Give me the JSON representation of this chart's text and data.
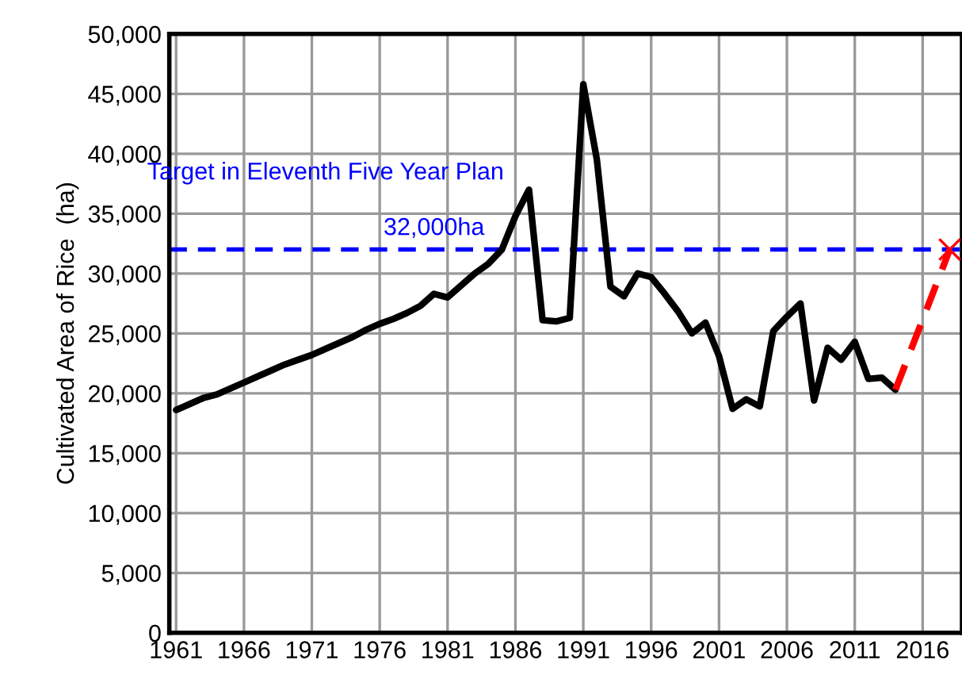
{
  "chart_data": {
    "type": "line",
    "ylabel": "Cultivated Area of Rice  (ha)",
    "xlim": [
      1960.5,
      2018.9
    ],
    "xticks": [
      1961,
      1966,
      1971,
      1976,
      1981,
      1986,
      1991,
      1996,
      2001,
      2006,
      2011,
      2016
    ],
    "ylim": [
      0,
      50000
    ],
    "yticks": [
      {
        "value": 0,
        "label": "0"
      },
      {
        "value": 5000,
        "label": "5,000"
      },
      {
        "value": 10000,
        "label": "10,000"
      },
      {
        "value": 15000,
        "label": "15,000"
      },
      {
        "value": 20000,
        "label": "20,000"
      },
      {
        "value": 25000,
        "label": "25,000"
      },
      {
        "value": 30000,
        "label": "30,000"
      },
      {
        "value": 35000,
        "label": "35,000"
      },
      {
        "value": 40000,
        "label": "40,000"
      },
      {
        "value": 45000,
        "label": "45,000"
      },
      {
        "value": 50000,
        "label": "50,000"
      }
    ],
    "grid": true,
    "series": [
      {
        "color": "#000000",
        "line_style": "solid",
        "x": [
          1961,
          1962,
          1963,
          1964,
          1965,
          1966,
          1967,
          1968,
          1969,
          1970,
          1971,
          1972,
          1973,
          1974,
          1975,
          1976,
          1977,
          1978,
          1979,
          1980,
          1981,
          1982,
          1983,
          1984,
          1985,
          1986,
          1987,
          1988,
          1989,
          1990,
          1991,
          1992,
          1993,
          1994,
          1995,
          1996,
          1997,
          1998,
          1999,
          2000,
          2001,
          2002,
          2003,
          2004,
          2005,
          2006,
          2007,
          2008,
          2009,
          2010,
          2011,
          2012,
          2013,
          2014
        ],
        "values": [
          18600,
          19100,
          19600,
          19900,
          20400,
          20900,
          21400,
          21900,
          22400,
          22800,
          23200,
          23700,
          24200,
          24700,
          25300,
          25800,
          26200,
          26700,
          27300,
          28300,
          28000,
          29000,
          30000,
          30800,
          32000,
          34800,
          37000,
          26100,
          26000,
          26300,
          45800,
          39500,
          28900,
          28100,
          30000,
          29700,
          28300,
          26800,
          25000,
          25900,
          23100,
          18700,
          19500,
          18900,
          25200,
          26400,
          27500,
          19400,
          23800,
          22800,
          24300,
          21200,
          21300,
          20300
        ]
      },
      {
        "type": "line",
        "color": "#ff0000",
        "line_style": "dashed",
        "x": [
          2014,
          2018
        ],
        "values": [
          20300,
          32000
        ]
      },
      {
        "type": "scatter",
        "color": "#ff0000",
        "marker": "cross",
        "x": [
          2018
        ],
        "values": [
          32000
        ]
      }
    ],
    "ref_lines": [
      {
        "axis": "y",
        "value": 32000,
        "label": "32,000ha",
        "color": "#0000ff",
        "line_style": "dashed"
      }
    ],
    "annotations": [
      "Target in Eleventh Five Year Plan"
    ]
  }
}
